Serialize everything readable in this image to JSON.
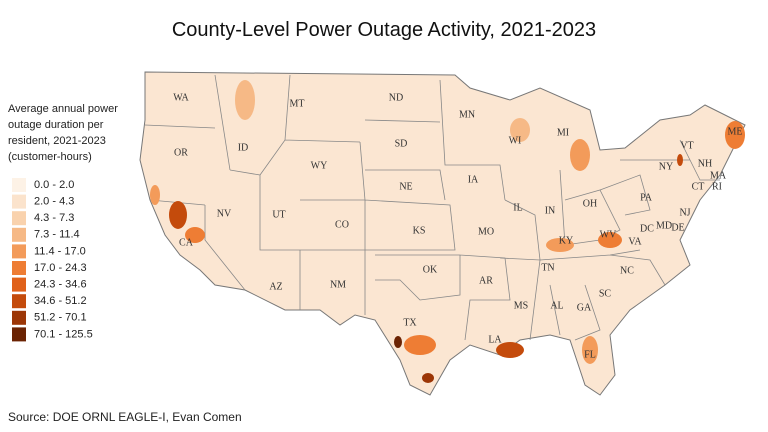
{
  "title": "County-Level Power Outage Activity, 2021-2023",
  "legend": {
    "title_lines": [
      "Average annual power",
      "outage duration per",
      "resident, 2021-2023",
      "(customer-hours)"
    ],
    "items": [
      {
        "label": "0.0 - 2.0",
        "color": "#fdf2e6"
      },
      {
        "label": "2.0 - 4.3",
        "color": "#fbe3cc"
      },
      {
        "label": "4.3 - 7.3",
        "color": "#f9d2ad"
      },
      {
        "label": "7.3 - 11.4",
        "color": "#f6b986"
      },
      {
        "label": "11.4 - 17.0",
        "color": "#f39b5a"
      },
      {
        "label": "17.0 - 24.3",
        "color": "#ee7d34"
      },
      {
        "label": "24.3 - 34.6",
        "color": "#e0611a"
      },
      {
        "label": "34.6 - 51.2",
        "color": "#c44b0c"
      },
      {
        "label": "51.2 - 70.1",
        "color": "#9c3606"
      },
      {
        "label": "70.1 - 125.5",
        "color": "#6b2303"
      }
    ]
  },
  "states": [
    "WA",
    "OR",
    "CA",
    "NV",
    "ID",
    "MT",
    "WY",
    "UT",
    "AZ",
    "CO",
    "NM",
    "ND",
    "SD",
    "NE",
    "KS",
    "OK",
    "TX",
    "MN",
    "IA",
    "MO",
    "AR",
    "LA",
    "WI",
    "IL",
    "MS",
    "MI",
    "IN",
    "TN",
    "AL",
    "KY",
    "OH",
    "GA",
    "FL",
    "WV",
    "VA",
    "NC",
    "SC",
    "PA",
    "NY",
    "MD",
    "DC",
    "DE",
    "NJ",
    "CT",
    "RI",
    "MA",
    "VT",
    "NH",
    "ME"
  ],
  "source": "Source: DOE ORNL EAGLE-I, Evan Comen"
}
